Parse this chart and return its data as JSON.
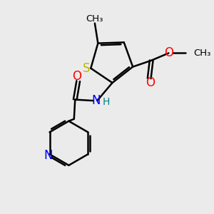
{
  "bg_color": "#ebebeb",
  "atom_colors": {
    "S": "#b8b800",
    "O": "#ff0000",
    "N": "#0000ff",
    "C": "#000000",
    "H": "#008080"
  },
  "bond_color": "#000000",
  "bond_width": 1.8,
  "figsize": [
    3.0,
    3.0
  ],
  "dpi": 100,
  "xlim": [
    0,
    10
  ],
  "ylim": [
    0,
    10
  ]
}
